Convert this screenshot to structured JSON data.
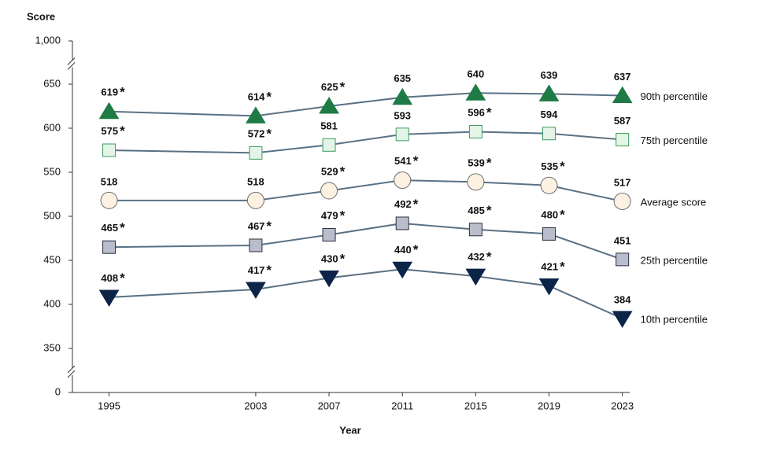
{
  "chart_data": {
    "type": "line",
    "y_label": "Score",
    "x_label": "Year",
    "x": [
      1995,
      2003,
      2007,
      2011,
      2015,
      2019,
      2023
    ],
    "xlim": [
      1993,
      2023.4
    ],
    "xticks": [
      1995,
      2003,
      2007,
      2011,
      2015,
      2019,
      2023
    ],
    "ylim": [
      0,
      1000
    ],
    "yticks": [
      0,
      350,
      400,
      450,
      500,
      550,
      600,
      650,
      {
        "value": 1000,
        "label": "1,000"
      }
    ],
    "y_axis_break": true,
    "line_color": "#5a7184",
    "series": [
      {
        "name": "90th percentile",
        "marker": "triangle-up",
        "color": "#1e7b45",
        "stroke": "#1e7b45",
        "values": [
          619,
          614,
          625,
          635,
          640,
          639,
          637
        ],
        "value_labels": [
          "619*",
          "614*",
          "625*",
          "635",
          "640",
          "639",
          "637"
        ]
      },
      {
        "name": "75th percentile",
        "marker": "square",
        "color": "#e4f4e7",
        "stroke": "#3d9a5f",
        "values": [
          575,
          572,
          581,
          593,
          596,
          594,
          587
        ],
        "value_labels": [
          "575*",
          "572*",
          "581",
          "593",
          "596*",
          "594",
          "587"
        ]
      },
      {
        "name": "Average score",
        "marker": "circle",
        "color": "#fdf1e1",
        "stroke": "#6e6e6e",
        "values": [
          518,
          518,
          529,
          541,
          539,
          535,
          517
        ],
        "value_labels": [
          "518",
          "518",
          "529*",
          "541*",
          "539*",
          "535*",
          "517"
        ]
      },
      {
        "name": "25th percentile",
        "marker": "square",
        "color": "#b9bdcc",
        "stroke": "#2b2f3d",
        "values": [
          465,
          467,
          479,
          492,
          485,
          480,
          451
        ],
        "value_labels": [
          "465*",
          "467*",
          "479*",
          "492*",
          "485*",
          "480*",
          "451"
        ]
      },
      {
        "name": "10th percentile",
        "marker": "triangle-down",
        "color": "#0c2447",
        "stroke": "#0c2447",
        "values": [
          408,
          417,
          430,
          440,
          432,
          421,
          384
        ],
        "value_labels": [
          "408*",
          "417*",
          "430*",
          "440*",
          "432*",
          "421*",
          "384"
        ]
      }
    ]
  }
}
